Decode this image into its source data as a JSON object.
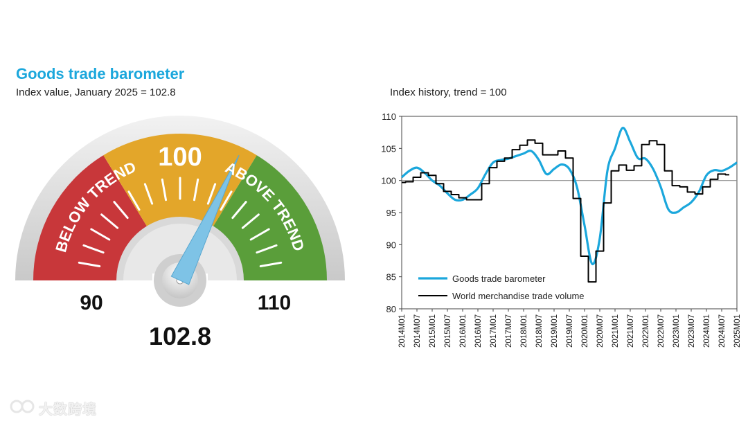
{
  "title": "Goods trade barometer",
  "subtitle": "Index value, January 2025 = 102.8",
  "watermark": "大数跨境",
  "gauge": {
    "min": 90,
    "max": 110,
    "mid": 100,
    "value": 102.8,
    "value_label": "102.8",
    "min_label": "90",
    "max_label": "110",
    "mid_label": "100",
    "below_label": "BELOW TREND",
    "above_label": "ABOVE TREND",
    "colors": {
      "below": "#c8373a",
      "middle": "#e3a62a",
      "above": "#5a9e3a",
      "needle": "#7ec3e6"
    }
  },
  "chart_data": {
    "type": "line",
    "title": "Index history, trend = 100",
    "ylim": [
      80,
      110
    ],
    "yticks": [
      80,
      85,
      90,
      95,
      100,
      105,
      110
    ],
    "reference_line": 100,
    "x_start": "2014M01",
    "x_end": "2025M01",
    "xticks": [
      "2014M01",
      "2014M07",
      "2015M01",
      "2015M07",
      "2016M01",
      "2016M07",
      "2017M01",
      "2017M07",
      "2018M01",
      "2018M07",
      "2019M01",
      "2019M07",
      "2020M01",
      "2020M07",
      "2021M01",
      "2021M07",
      "2022M01",
      "2022M07",
      "2023M01",
      "2023M07",
      "2024M01",
      "2024M07",
      "2025M01"
    ],
    "legend_position": "bottom-left",
    "series": [
      {
        "name": "Goods trade barometer",
        "color": "#1ba7dc",
        "points": [
          [
            "2014M01",
            100.5
          ],
          [
            "2014M04",
            101.5
          ],
          [
            "2014M07",
            102.0
          ],
          [
            "2014M10",
            101.2
          ],
          [
            "2015M01",
            100.0
          ],
          [
            "2015M04",
            99.2
          ],
          [
            "2015M07",
            98.0
          ],
          [
            "2015M10",
            97.0
          ],
          [
            "2016M01",
            97.0
          ],
          [
            "2016M04",
            97.8
          ],
          [
            "2016M07",
            98.8
          ],
          [
            "2016M10",
            101.0
          ],
          [
            "2017M01",
            102.8
          ],
          [
            "2017M04",
            103.2
          ],
          [
            "2017M07",
            103.4
          ],
          [
            "2017M10",
            103.8
          ],
          [
            "2018M01",
            104.2
          ],
          [
            "2018M04",
            104.6
          ],
          [
            "2018M07",
            103.2
          ],
          [
            "2018M10",
            101.0
          ],
          [
            "2019M01",
            101.8
          ],
          [
            "2019M04",
            102.5
          ],
          [
            "2019M07",
            101.8
          ],
          [
            "2019M10",
            99.0
          ],
          [
            "2020M01",
            93.0
          ],
          [
            "2020M04",
            87.0
          ],
          [
            "2020M07",
            91.0
          ],
          [
            "2020M10",
            101.5
          ],
          [
            "2021M01",
            105.0
          ],
          [
            "2021M04",
            108.2
          ],
          [
            "2021M07",
            106.0
          ],
          [
            "2021M10",
            103.5
          ],
          [
            "2022M01",
            103.4
          ],
          [
            "2022M04",
            101.8
          ],
          [
            "2022M07",
            99.0
          ],
          [
            "2022M10",
            95.5
          ],
          [
            "2023M01",
            95.0
          ],
          [
            "2023M04",
            95.8
          ],
          [
            "2023M07",
            96.6
          ],
          [
            "2023M10",
            98.2
          ],
          [
            "2024M01",
            100.8
          ],
          [
            "2024M04",
            101.6
          ],
          [
            "2024M07",
            101.5
          ],
          [
            "2024M10",
            102.0
          ],
          [
            "2025M01",
            102.8
          ]
        ]
      },
      {
        "name": "World merchandise trade volume",
        "color": "#000000",
        "points": [
          [
            "2014M01",
            99.7
          ],
          [
            "2014M04",
            99.8
          ],
          [
            "2014M07",
            100.5
          ],
          [
            "2014M10",
            101.2
          ],
          [
            "2015M01",
            100.8
          ],
          [
            "2015M04",
            99.5
          ],
          [
            "2015M07",
            98.3
          ],
          [
            "2015M10",
            97.8
          ],
          [
            "2016M01",
            97.3
          ],
          [
            "2016M04",
            97.0
          ],
          [
            "2016M07",
            97.0
          ],
          [
            "2016M10",
            99.5
          ],
          [
            "2017M01",
            102.0
          ],
          [
            "2017M04",
            103.0
          ],
          [
            "2017M07",
            103.5
          ],
          [
            "2017M10",
            104.8
          ],
          [
            "2018M01",
            105.5
          ],
          [
            "2018M04",
            106.3
          ],
          [
            "2018M07",
            105.8
          ],
          [
            "2018M10",
            104.0
          ],
          [
            "2019M01",
            104.0
          ],
          [
            "2019M04",
            104.6
          ],
          [
            "2019M07",
            103.5
          ],
          [
            "2019M10",
            97.2
          ],
          [
            "2020M01",
            88.2
          ],
          [
            "2020M04",
            84.2
          ],
          [
            "2020M07",
            89.0
          ],
          [
            "2020M10",
            96.5
          ],
          [
            "2021M01",
            101.5
          ],
          [
            "2021M04",
            102.4
          ],
          [
            "2021M07",
            101.6
          ],
          [
            "2021M10",
            102.3
          ],
          [
            "2022M01",
            105.6
          ],
          [
            "2022M04",
            106.2
          ],
          [
            "2022M07",
            105.6
          ],
          [
            "2022M10",
            101.5
          ],
          [
            "2023M01",
            99.2
          ],
          [
            "2023M04",
            99.0
          ],
          [
            "2023M07",
            98.2
          ],
          [
            "2023M10",
            97.9
          ],
          [
            "2024M01",
            99.0
          ],
          [
            "2024M04",
            100.2
          ],
          [
            "2024M07",
            101.0
          ],
          [
            "2024M10",
            100.9
          ]
        ]
      }
    ]
  }
}
